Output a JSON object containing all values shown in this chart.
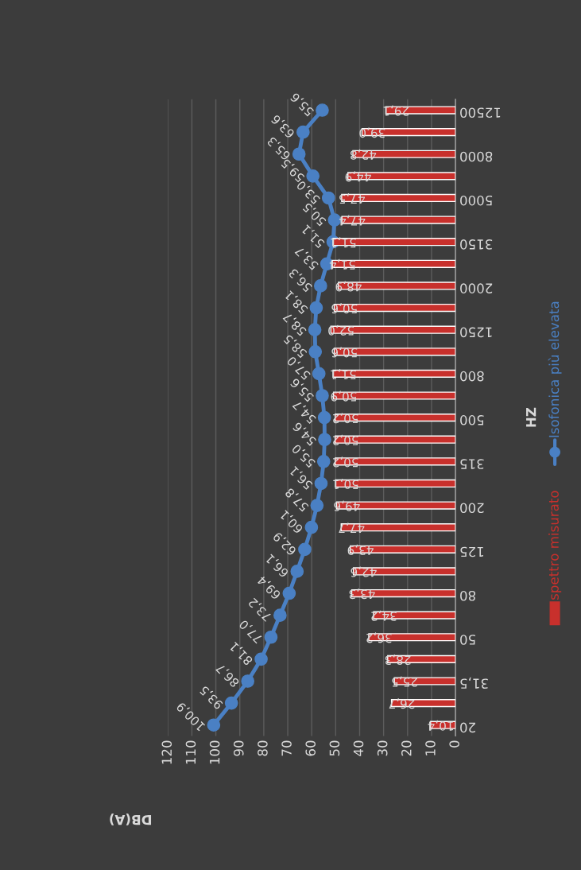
{
  "chart_data": {
    "type": "bar",
    "orientation": "horizontal",
    "xlabel": "DB(A)",
    "ylabel": "HZ",
    "categories": [
      "12500",
      null,
      "8000",
      null,
      "5000",
      null,
      "3150",
      null,
      "2000",
      null,
      "1250",
      null,
      "800",
      null,
      "500",
      null,
      "315",
      null,
      "200",
      null,
      "125",
      null,
      "80",
      null,
      "50",
      null,
      "31,5",
      null,
      "20"
    ],
    "series": [
      {
        "name": "spettro misurato",
        "color": "#c8302c",
        "values": [
          29.1,
          39.0,
          42.8,
          44.9,
          47.5,
          47.4,
          51.1,
          51.4,
          48.9,
          50.6,
          52.0,
          50.6,
          51.1,
          50.9,
          50.2,
          50.2,
          50.2,
          50.1,
          49.6,
          47.7,
          43.9,
          42.6,
          43.3,
          34.2,
          36.2,
          28.3,
          25.5,
          26.7,
          10.4
        ],
        "value_labels": [
          "29,1",
          "39,0",
          "42,8",
          "44,9",
          "47,5",
          "47,4",
          "51,1",
          "51,4",
          "48,9",
          "50,6",
          "52,0",
          "50,6",
          "51,1",
          "50,9",
          "50,2",
          "50,2",
          "50,2",
          "50,1",
          "49,6",
          "47,7",
          "43,9",
          "42,6",
          "43,3",
          "34,2",
          "36,2",
          "28,3",
          "25,5",
          "26,7",
          "10,4"
        ]
      },
      {
        "name": "Isofonica più elevata",
        "type": "line",
        "color": "#4a80c4",
        "marker": "circle",
        "values": [
          55.6,
          63.6,
          65.3,
          59.5,
          53.0,
          50.5,
          51.1,
          53.7,
          56.3,
          58.1,
          58.7,
          58.5,
          57.0,
          55.6,
          54.7,
          54.6,
          55.0,
          56.1,
          57.8,
          60.1,
          62.9,
          66.1,
          69.4,
          73.2,
          77.0,
          81.1,
          86.7,
          93.5,
          100.9
        ],
        "value_labels": [
          "55,6",
          "63,6",
          "65,3",
          "59,5",
          "53,0",
          "50,5",
          "51,1",
          "53,7",
          "56,3",
          "58,1",
          "58,7",
          "58,5",
          "57,0",
          "55,6",
          "54,7",
          "54,6",
          "55,0",
          "56,1",
          "57,8",
          "60,1",
          "62,9",
          "66,1",
          "69,4",
          "73,2",
          "77,0",
          "81,1",
          "86,7",
          "93,5",
          "100,9"
        ]
      }
    ],
    "xlim": [
      120,
      0
    ],
    "xticks": [
      0,
      10,
      20,
      30,
      40,
      50,
      60,
      70,
      80,
      90,
      100,
      110,
      120
    ],
    "grid": "x",
    "legend": "right"
  }
}
